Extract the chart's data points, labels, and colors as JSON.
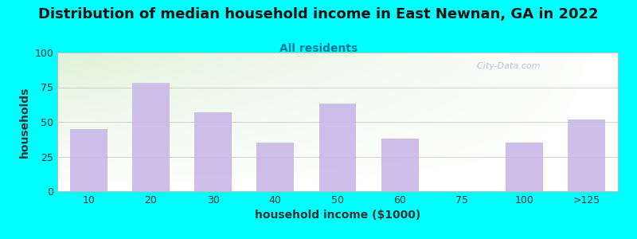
{
  "title": "Distribution of median household income in East Newnan, GA in 2022",
  "subtitle": "All residents",
  "xlabel": "household income ($1000)",
  "ylabel": "households",
  "categories": [
    "10",
    "20",
    "30",
    "40",
    "50",
    "60",
    "75",
    "100",
    ">125"
  ],
  "values": [
    45,
    78,
    57,
    35,
    63,
    38,
    0,
    35,
    52
  ],
  "bar_color": "#c8b8e8",
  "background_color": "#00FFFF",
  "plot_bg_colors": [
    "#d8f0d0",
    "#ffffff"
  ],
  "ylim": [
    0,
    100
  ],
  "yticks": [
    0,
    25,
    50,
    75,
    100
  ],
  "title_fontsize": 13,
  "subtitle_fontsize": 10,
  "axis_label_fontsize": 10,
  "tick_fontsize": 9,
  "watermark_text": "  City-Data.com",
  "watermark_color": "#aabbcc",
  "title_color": "#111111",
  "subtitle_color": "#007799",
  "label_color": "#333333",
  "grid_color": "#cccccc",
  "spine_color": "#bbbbbb"
}
